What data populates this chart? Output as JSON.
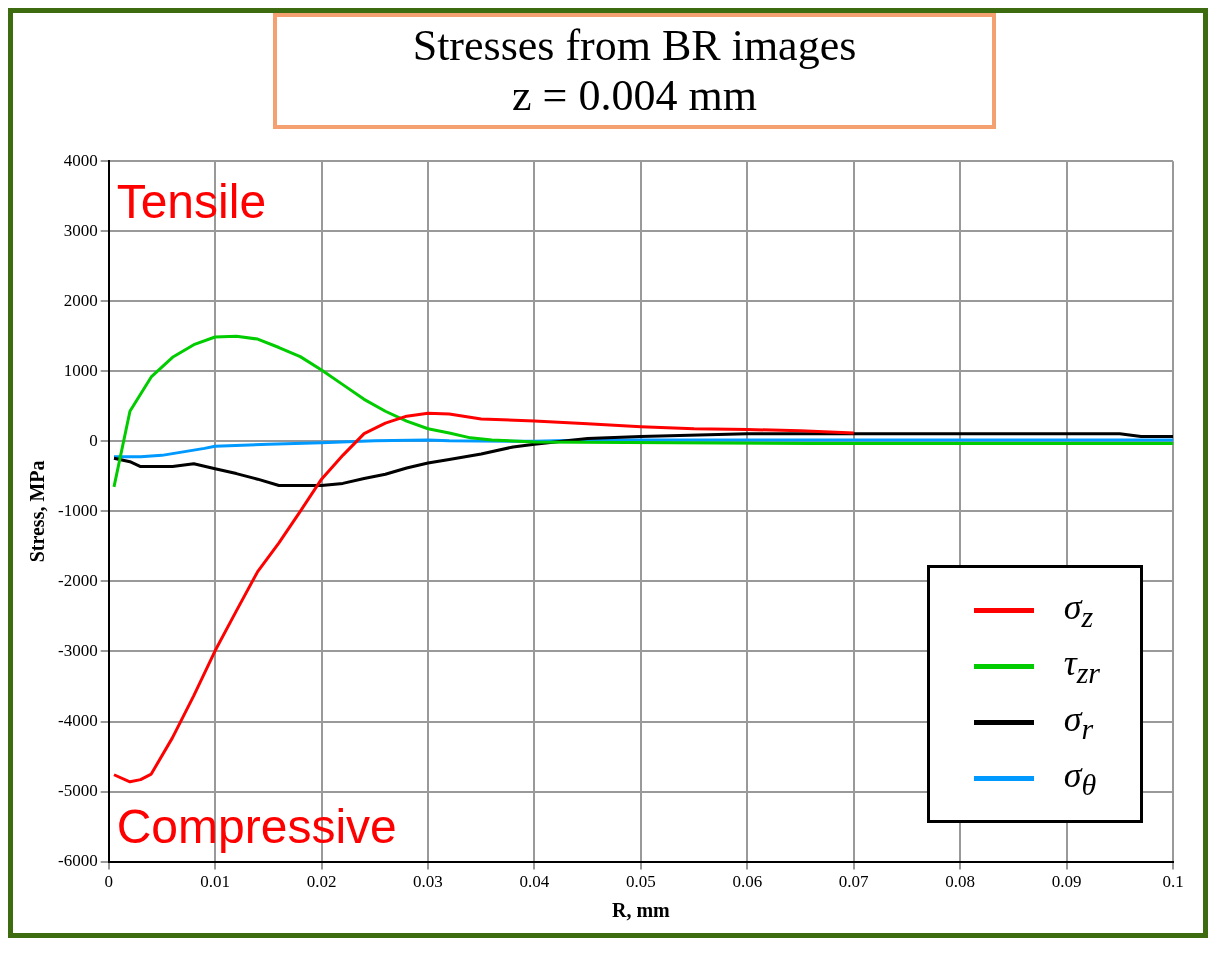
{
  "chart_data": {
    "type": "line",
    "title": "Stresses from BR images",
    "subtitle": "z = 0.004 mm",
    "xlabel": "R, mm",
    "ylabel": "Stress, MPa",
    "annotations": [
      "Tensile",
      "Compressive"
    ],
    "xlim": [
      0,
      0.1
    ],
    "xticks": [
      0,
      0.01,
      0.02,
      0.03,
      0.04,
      0.05,
      0.06,
      0.07,
      0.08,
      0.09,
      0.1
    ],
    "ylim": [
      -6000,
      4000
    ],
    "yticks": [
      -6000,
      -5000,
      -4000,
      -3000,
      -2000,
      -1000,
      0,
      1000,
      2000,
      3000,
      4000
    ],
    "grid": true,
    "legend": "bottom right",
    "marker": "none",
    "line_style": "solid",
    "series": [
      {
        "name": "σ$_{z}$",
        "color": "#ff0000",
        "x": [
          0.0005,
          0.002,
          0.003,
          0.004,
          0.006,
          0.008,
          0.01,
          0.012,
          0.014,
          0.016,
          0.018,
          0.02,
          0.022,
          0.024,
          0.026,
          0.028,
          0.03,
          0.032,
          0.035,
          0.04,
          0.045,
          0.05,
          0.055,
          0.06,
          0.065,
          0.07
        ],
        "values": [
          -4760,
          -4860,
          -4830,
          -4750,
          -4230,
          -3630,
          -2990,
          -2420,
          -1860,
          -1450,
          -1000,
          -540,
          -200,
          110,
          260,
          360,
          400,
          390,
          320,
          290,
          250,
          210,
          180,
          170,
          150,
          120
        ]
      },
      {
        "name": "τ$_{zr}$",
        "color": "#00cc00",
        "x": [
          0.0005,
          0.002,
          0.004,
          0.006,
          0.008,
          0.01,
          0.012,
          0.014,
          0.016,
          0.018,
          0.02,
          0.022,
          0.024,
          0.026,
          0.028,
          0.03,
          0.032,
          0.034,
          0.036,
          0.04,
          0.066,
          0.1
        ],
        "values": [
          -650,
          430,
          920,
          1200,
          1380,
          1490,
          1500,
          1460,
          1340,
          1210,
          1020,
          810,
          600,
          430,
          290,
          180,
          120,
          50,
          20,
          -10,
          -30,
          -30
        ]
      },
      {
        "name": "σ$_{r}$",
        "color": "#000000",
        "x": [
          0.0005,
          0.002,
          0.003,
          0.006,
          0.008,
          0.01,
          0.012,
          0.014,
          0.016,
          0.018,
          0.02,
          0.022,
          0.024,
          0.026,
          0.028,
          0.03,
          0.032,
          0.035,
          0.038,
          0.04,
          0.045,
          0.05,
          0.06,
          0.07,
          0.08,
          0.095,
          0.097,
          0.1
        ],
        "values": [
          -240,
          -290,
          -360,
          -360,
          -320,
          -390,
          -460,
          -540,
          -630,
          -630,
          -630,
          -600,
          -530,
          -470,
          -380,
          -310,
          -260,
          -180,
          -80,
          -40,
          40,
          70,
          110,
          110,
          110,
          110,
          70,
          70
        ]
      },
      {
        "name": "σ$_{θ}$",
        "color": "#0099ff",
        "x": [
          0.0005,
          0.003,
          0.005,
          0.007,
          0.009,
          0.01,
          0.015,
          0.02,
          0.025,
          0.03,
          0.032,
          0.04,
          0.045,
          0.1
        ],
        "values": [
          -220,
          -220,
          -200,
          -150,
          -100,
          -70,
          -40,
          -20,
          10,
          20,
          10,
          0,
          20,
          20
        ]
      }
    ]
  }
}
